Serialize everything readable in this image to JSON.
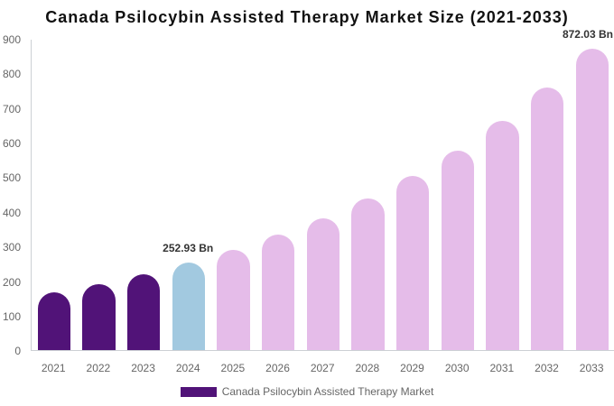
{
  "chart_data": {
    "type": "bar",
    "title": "Canada Psilocybin Assisted Therapy Market Size (2021-2033)",
    "unit": "Bn",
    "categories": [
      "2021",
      "2022",
      "2023",
      "2024",
      "2025",
      "2026",
      "2027",
      "2028",
      "2029",
      "2030",
      "2031",
      "2032",
      "2033"
    ],
    "values": [
      167.43,
      192.11,
      220.43,
      252.93,
      290.22,
      333.01,
      382.1,
      438.43,
      503.07,
      577.24,
      662.34,
      759.99,
      872.03
    ],
    "segments": [
      "historical",
      "historical",
      "historical",
      "current",
      "forecast",
      "forecast",
      "forecast",
      "forecast",
      "forecast",
      "forecast",
      "forecast",
      "forecast",
      "forecast"
    ],
    "data_labels": [
      {
        "index": 3,
        "text": "252.93 Bn"
      },
      {
        "index": 12,
        "text": "872.03 Bn"
      }
    ],
    "xlabel": "",
    "ylabel": "",
    "ylim": [
      0,
      900
    ],
    "ytick_step": 100,
    "yticks": [
      "0",
      "100",
      "200",
      "300",
      "400",
      "500",
      "600",
      "700",
      "800",
      "900"
    ],
    "grid": "off",
    "legend_position": "bottom",
    "legend_label": "Canada Psilocybin Assisted Therapy Market"
  },
  "colors": {
    "historical_bar": "#511378",
    "current_bar": "#a2c9e0",
    "forecast_bar": "#e5bce9",
    "title_text": "#111111",
    "tick_label_text": "#666666",
    "data_label_text": "#333333",
    "legend_text": "#666666",
    "axis_line": "#ccd0d4",
    "background": "#ffffff"
  }
}
